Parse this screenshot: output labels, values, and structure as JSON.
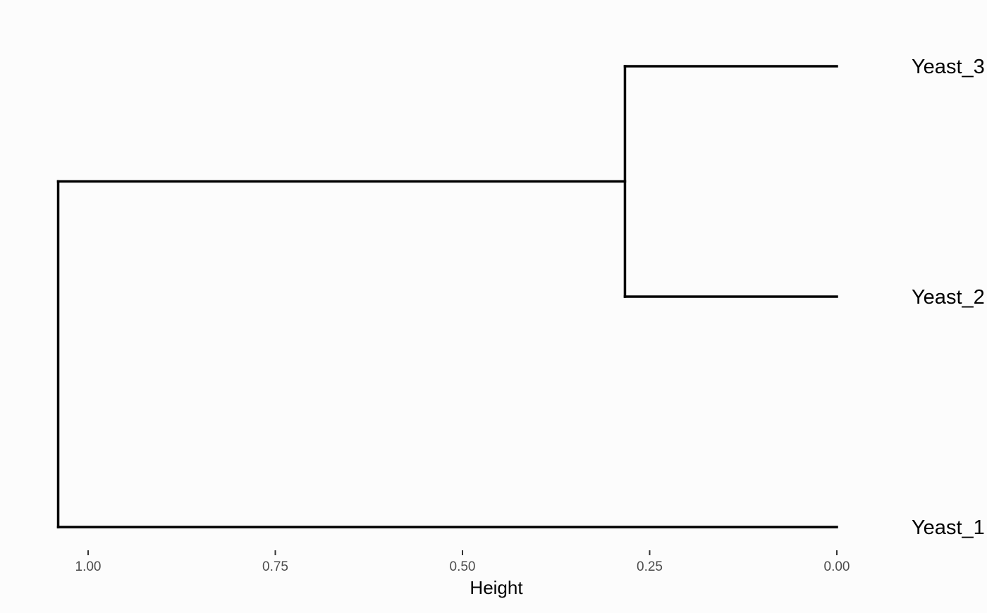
{
  "chart_data": {
    "type": "dendrogram",
    "orientation": "horizontal",
    "xlabel": "Height",
    "x_reversed": true,
    "xlim": [
      1.04,
      0.0
    ],
    "ticks": [
      {
        "value": 1.0,
        "label": "1.00"
      },
      {
        "value": 0.75,
        "label": "0.75"
      },
      {
        "value": 0.5,
        "label": "0.50"
      },
      {
        "value": 0.25,
        "label": "0.25"
      },
      {
        "value": 0.0,
        "label": "0.00"
      }
    ],
    "leaves": [
      {
        "label": "Yeast_3",
        "order": 0
      },
      {
        "label": "Yeast_2",
        "order": 1
      },
      {
        "label": "Yeast_1",
        "order": 2
      }
    ],
    "merges": [
      {
        "left": "Yeast_3",
        "right": "Yeast_2",
        "height": 0.283
      },
      {
        "left": "cluster_1",
        "right": "Yeast_1",
        "height": 1.04
      }
    ],
    "grid": false,
    "line_color": "#000000",
    "background": "#fcfcfc"
  }
}
